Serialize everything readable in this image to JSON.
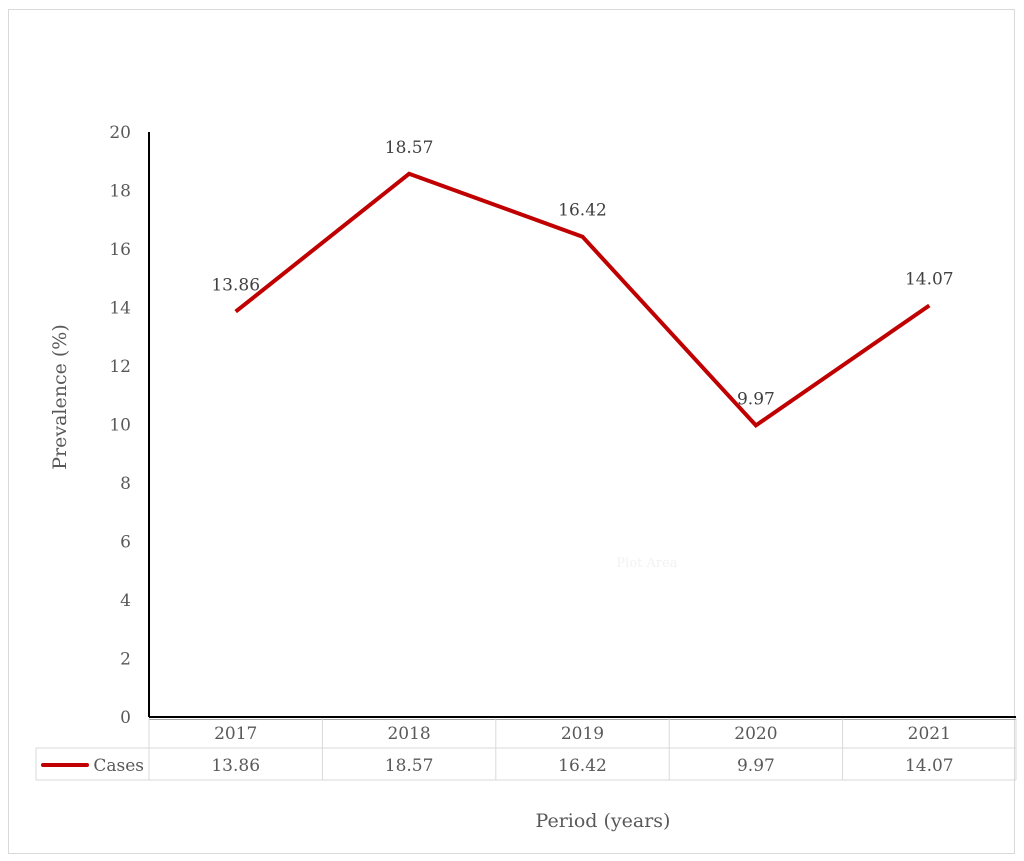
{
  "chart_data": {
    "type": "line",
    "title": "",
    "categories": [
      "2017",
      "2018",
      "2019",
      "2020",
      "2021"
    ],
    "series": [
      {
        "name": "Cases",
        "values": [
          13.86,
          18.57,
          16.42,
          9.97,
          14.07
        ],
        "color": "#c00000"
      }
    ],
    "xlabel": "Period (years)",
    "ylabel": "Prevalence (%)",
    "ylim": [
      0,
      20
    ],
    "yticks": [
      0,
      2,
      4,
      6,
      8,
      10,
      12,
      14,
      16,
      18,
      20
    ],
    "data_labels": [
      "13.86",
      "18.57",
      "16.42",
      "9.97",
      "14.07"
    ],
    "grid": false,
    "legend": "data-table",
    "data_table": {
      "header": [
        "2017",
        "2018",
        "2019",
        "2020",
        "2021"
      ],
      "rows": [
        {
          "label": "Cases",
          "values": [
            "13.86",
            "18.57",
            "16.42",
            "9.97",
            "14.07"
          ]
        }
      ]
    },
    "plot_area_hint": "Plot Area"
  }
}
